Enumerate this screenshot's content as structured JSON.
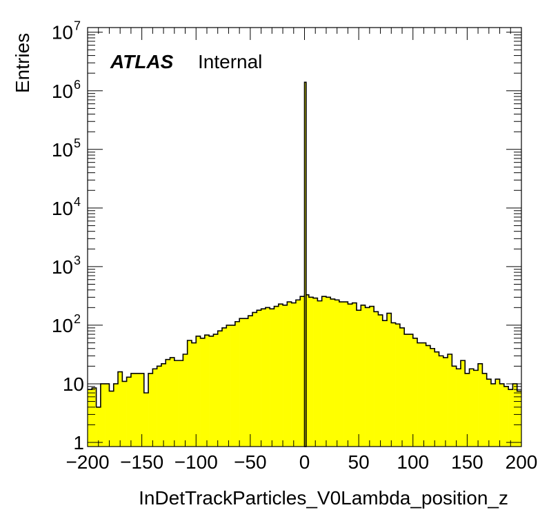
{
  "chart_data": {
    "type": "bar",
    "title": "",
    "xlabel": "InDetTrackParticles_V0Lambda_position_z",
    "ylabel": "Entries",
    "annotation": {
      "bold": "ATLAS",
      "normal": "Internal"
    },
    "xlim": [
      -200,
      200
    ],
    "ylim": [
      0.85,
      12000000
    ],
    "yscale": "log",
    "grid": false,
    "bin_width": 4,
    "fill_color": "#ffff00",
    "line_color": "#000000",
    "x_ticks": [
      {
        "value": -200,
        "label": "−200"
      },
      {
        "value": -150,
        "label": "−150"
      },
      {
        "value": -100,
        "label": "−100"
      },
      {
        "value": -50,
        "label": "−50"
      },
      {
        "value": 0,
        "label": "0"
      },
      {
        "value": 50,
        "label": "50"
      },
      {
        "value": 100,
        "label": "100"
      },
      {
        "value": 150,
        "label": "150"
      },
      {
        "value": 200,
        "label": "200"
      }
    ],
    "y_ticks": [
      {
        "value": 1,
        "base": "1",
        "exp": ""
      },
      {
        "value": 10,
        "base": "10",
        "exp": ""
      },
      {
        "value": 100,
        "base": "10",
        "exp": "2"
      },
      {
        "value": 1000,
        "base": "10",
        "exp": "3"
      },
      {
        "value": 10000,
        "base": "10",
        "exp": "4"
      },
      {
        "value": 100000,
        "base": "10",
        "exp": "5"
      },
      {
        "value": 1000000,
        "base": "10",
        "exp": "6"
      },
      {
        "value": 10000000,
        "base": "10",
        "exp": "7"
      }
    ],
    "bin_edges_low": [
      -200,
      -196,
      -192,
      -188,
      -184,
      -180,
      -176,
      -172,
      -168,
      -164,
      -160,
      -156,
      -152,
      -148,
      -144,
      -140,
      -136,
      -132,
      -128,
      -124,
      -120,
      -116,
      -112,
      -108,
      -104,
      -100,
      -96,
      -92,
      -88,
      -84,
      -80,
      -76,
      -72,
      -68,
      -64,
      -60,
      -56,
      -52,
      -48,
      -44,
      -40,
      -36,
      -32,
      -28,
      -24,
      -20,
      -16,
      -12,
      -8,
      -4,
      0,
      4,
      8,
      12,
      16,
      20,
      24,
      28,
      32,
      36,
      40,
      44,
      48,
      52,
      56,
      60,
      64,
      68,
      72,
      76,
      80,
      84,
      88,
      92,
      96,
      100,
      104,
      108,
      112,
      116,
      120,
      124,
      128,
      132,
      136,
      140,
      144,
      148,
      152,
      156,
      160,
      164,
      168,
      172,
      176,
      180,
      184,
      188,
      192,
      196
    ],
    "values": [
      8,
      8.5,
      4,
      10,
      10,
      7.5,
      10,
      16,
      11,
      13,
      15,
      15,
      15,
      7,
      15,
      18,
      20,
      22,
      26,
      28,
      25,
      25,
      32,
      55,
      50,
      65,
      60,
      68,
      65,
      70,
      80,
      90,
      100,
      100,
      115,
      130,
      130,
      145,
      165,
      180,
      190,
      200,
      190,
      210,
      230,
      220,
      250,
      240,
      270,
      310,
      330,
      300,
      290,
      260,
      310,
      300,
      280,
      270,
      250,
      250,
      230,
      240,
      180,
      220,
      200,
      210,
      170,
      150,
      120,
      160,
      110,
      105,
      90,
      70,
      70,
      60,
      50,
      50,
      45,
      40,
      35,
      30,
      28,
      32,
      20,
      18,
      25,
      15,
      18,
      17,
      22,
      15,
      12,
      10,
      12,
      10,
      9,
      8,
      10,
      7.5
    ],
    "spike": {
      "x_low": 0,
      "x_high": 1.5,
      "value": 1400000
    }
  }
}
